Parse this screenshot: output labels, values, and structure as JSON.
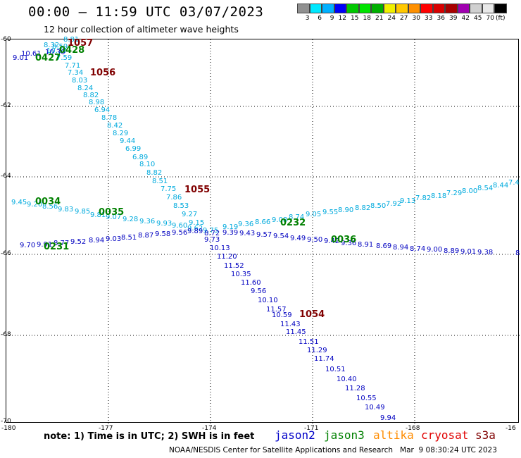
{
  "header": {
    "title": "00:00 – 11:59 UTC 03/07/2023",
    "subtitle": "12 hour collection of altimeter wave heights"
  },
  "color_scale": {
    "colors": [
      "#909090",
      "#00e8ff",
      "#00b0ff",
      "#0000f8",
      "#00c800",
      "#00e400",
      "#00b000",
      "#f0f000",
      "#ffc800",
      "#ff9000",
      "#ff0000",
      "#d80000",
      "#a80000",
      "#a000b0",
      "#d0d0d0",
      "#e8e8e8",
      "#000000"
    ],
    "labels": [
      "3",
      "6",
      "9",
      "12",
      "15",
      "18",
      "21",
      "24",
      "27",
      "30",
      "33",
      "36",
      "39",
      "42",
      "45",
      "70"
    ],
    "unit": "(ft)"
  },
  "axes": {
    "lon_ticks": [
      "-180",
      "-177",
      "-174",
      "-171",
      "-168",
      "-16"
    ],
    "lat_ticks": [
      "-60",
      "-62",
      "-64",
      "-66",
      "-68",
      "-70"
    ]
  },
  "satellites": {
    "jason2": {
      "label": "jason2",
      "color": "#0000c8"
    },
    "jason3": {
      "label": "jason3",
      "color": "#008000"
    },
    "altika": {
      "label": "altika",
      "color": "#ff8c00"
    },
    "cryosat": {
      "label": "cryosat",
      "color": "#e00000"
    },
    "s3a": {
      "label": "s3a",
      "color": "#800000"
    }
  },
  "pass_labels": {
    "t1057": "1057",
    "t0428": "0428",
    "t0427": "0427",
    "t1056": "1056",
    "t1055": "1055",
    "t0034": "0034",
    "t0035": "0035",
    "t0232": "0232",
    "t0231": "0231",
    "t0036": "0036",
    "t1054": "1054"
  },
  "note": "note: 1) Time is in UTC; 2) SWH is in feet",
  "footer": "NOAA/NESDIS Center for Satellite Applications and Research   Mar  9 08:30:24 UTC 2023",
  "points": {
    "s3a_track": [
      "8.81",
      "8.32",
      "8.59",
      "10.30",
      "7.59",
      "7.71",
      "7.34",
      "8.03",
      "8.24",
      "8.82",
      "8.98",
      "6.94",
      "8.78",
      "8.42",
      "8.29",
      "9.44",
      "6.99",
      "6.89",
      "8.10",
      "8.82",
      "8.51",
      "7.75",
      "7.86",
      "8.53",
      "9.27",
      "9.15"
    ],
    "s3a_extra": [
      "10.61",
      "9.01",
      "10.30"
    ],
    "upper_track": [
      "9.45",
      "9.20",
      "8.56",
      "9.83",
      "9.85",
      "9.81",
      "9.07",
      "9.28",
      "9.36",
      "9.93",
      "9.60",
      "9.62",
      "9.75",
      "9.19",
      "9.36",
      "8.66",
      "9.08",
      "8.74",
      "9.05",
      "9.55",
      "8.90",
      "8.82",
      "8.50",
      "7.92",
      "9.13",
      "7.82",
      "8.18",
      "7.29",
      "8.00",
      "8.54",
      "8.44",
      "7.4"
    ],
    "lower_track": [
      "9.70",
      "9.91",
      "8.77",
      "9.52",
      "8.94",
      "9.03",
      "8.51",
      "8.87",
      "9.58",
      "9.56",
      "9.89",
      "8.72",
      "9.39",
      "9.43",
      "9.57",
      "9.54",
      "9.49",
      "9.50",
      "9.42",
      "9.36",
      "8.91",
      "8.69",
      "8.94",
      "8.74",
      "9.00",
      "8.89",
      "9.01",
      "9.38",
      "8"
    ],
    "jason_track": [
      "9.73",
      "10.13",
      "11.20",
      "11.52",
      "10.35",
      "11.60",
      "9.56",
      "10.10",
      "11.57",
      "10.59",
      "11.43",
      "11.45",
      "11.51",
      "11.29",
      "11.74",
      "10.51",
      "10.40",
      "11.28",
      "10.55",
      "10.49",
      "9.94"
    ]
  }
}
